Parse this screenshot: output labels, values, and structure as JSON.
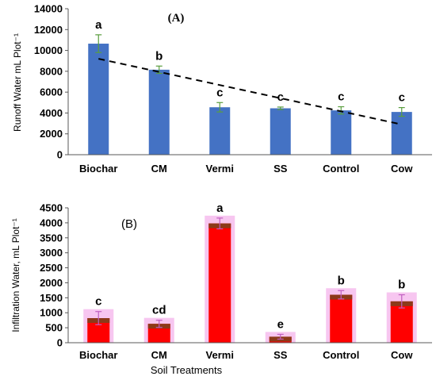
{
  "chart_data": [
    {
      "type": "bar",
      "title": "(A)",
      "ylabel": "Runoff Water mL Plot⁻¹",
      "xlabel": "",
      "categories": [
        "Biochar",
        "CM",
        "Vermi",
        "SS",
        "Control",
        "Cow"
      ],
      "values": [
        10650,
        8150,
        4550,
        4450,
        4250,
        4100
      ],
      "errors": [
        850,
        350,
        450,
        120,
        350,
        420
      ],
      "significance_letters": [
        "a",
        "b",
        "c",
        "c",
        "c",
        "c"
      ],
      "ylim": [
        0,
        14000
      ],
      "yticks": [
        0,
        2000,
        4000,
        6000,
        8000,
        10000,
        12000,
        14000
      ],
      "ytick_labels": [
        "0",
        "2000",
        "4000",
        "6000",
        "8000",
        "10000",
        "12000",
        "14000"
      ],
      "trendline": {
        "style": "dashed",
        "from": [
          1,
          9200
        ],
        "to": [
          6,
          2900
        ]
      },
      "bar_color": "#4472C4",
      "error_color": "#5A9E3E",
      "grid": false,
      "legend": "none"
    },
    {
      "type": "bar",
      "title": "(B)",
      "ylabel": "Infiltration Water, mL Plot⁻¹",
      "xlabel": "Soil Treatments",
      "categories": [
        "Biochar",
        "CM",
        "Vermi",
        "SS",
        "Control",
        "Cow"
      ],
      "values": [
        820,
        630,
        3980,
        200,
        1600,
        1380
      ],
      "errors": [
        220,
        120,
        180,
        80,
        140,
        220
      ],
      "significance_letters": [
        "c",
        "cd",
        "a",
        "e",
        "b",
        "b"
      ],
      "ylim": [
        0,
        4500
      ],
      "yticks": [
        0,
        500,
        1000,
        1500,
        2000,
        2500,
        3000,
        3500,
        4000,
        4500
      ],
      "ytick_labels": [
        "0",
        "500",
        "1000",
        "1500",
        "2000",
        "2500",
        "3000",
        "3500",
        "4000",
        "4500"
      ],
      "bar_color": "#FF0000",
      "bar_top_color": "#8B3A1A",
      "bar_halo_color": "#F7C6F0",
      "error_color": "#C05FC0",
      "grid": false,
      "legend": "none"
    }
  ]
}
